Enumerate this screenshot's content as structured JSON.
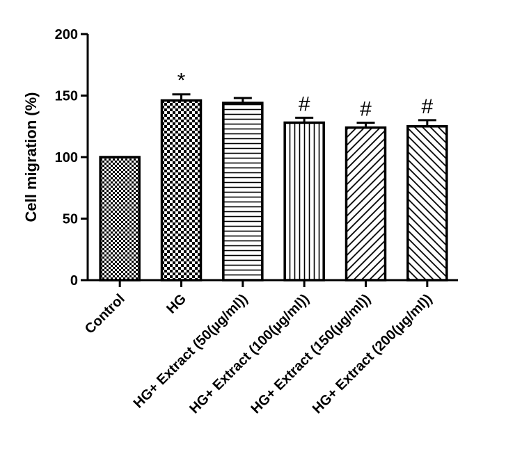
{
  "chart_data": {
    "type": "bar",
    "title": "",
    "xlabel": "",
    "ylabel": "Cell migration (%)",
    "ylim": [
      0,
      200
    ],
    "yticks": [
      0,
      50,
      100,
      150,
      200
    ],
    "grid": false,
    "legend": "none",
    "categories": [
      "Control",
      "HG",
      "HG+ Extract (50(µg/ml))",
      "HG+ Extract (100(µg/ml))",
      "HG+ Extract (150(µg/ml))",
      "HG+ Extract (200(µg/ml))"
    ],
    "values": [
      100,
      146,
      144,
      128,
      124,
      125
    ],
    "errors": [
      0,
      5,
      4,
      4,
      4,
      5
    ],
    "annotations": [
      "",
      "*",
      "",
      "#",
      "#",
      "#"
    ],
    "patterns": [
      "fine-checker",
      "checker",
      "horizontal-lines",
      "vertical-lines",
      "diagonal-up",
      "diagonal-down"
    ],
    "colors": {
      "bar_fill": "#ffffff",
      "stroke": "#000000"
    }
  }
}
